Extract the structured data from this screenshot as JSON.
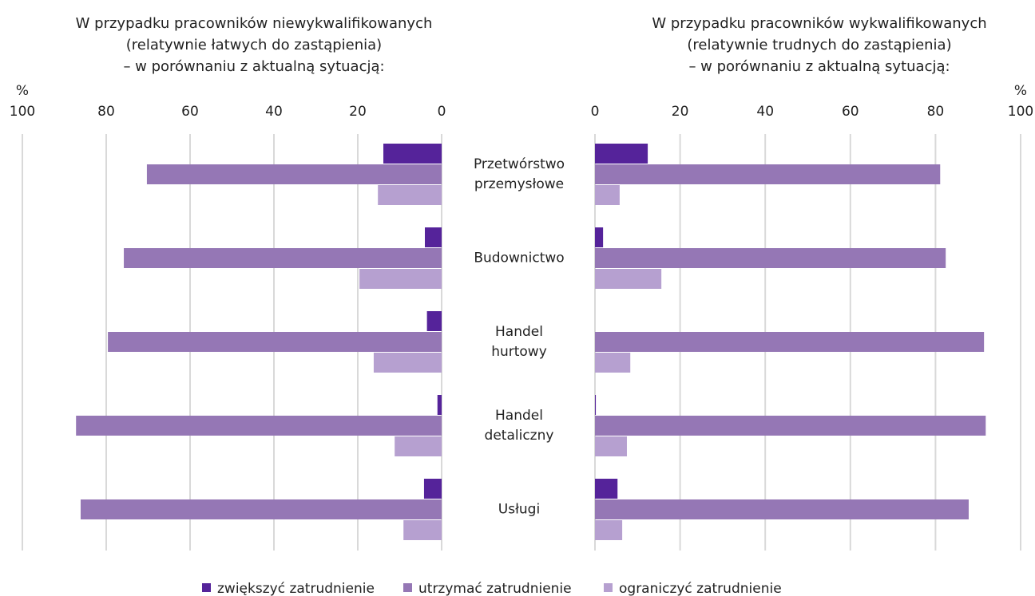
{
  "chart_data": {
    "type": "bar",
    "orientation": "horizontal",
    "categories": [
      [
        "Przetwórstwo",
        "przemysłowe"
      ],
      [
        "Budownictwo"
      ],
      [
        "Handel",
        "hurtowy"
      ],
      [
        "Handel",
        "detaliczny"
      ],
      [
        "Usługi"
      ]
    ],
    "series": [
      {
        "name": "zwiększyć zatrudnienie",
        "color": "#55239a"
      },
      {
        "name": "utrzymać zatrudnienie",
        "color": "#9577b5"
      },
      {
        "name": "ograniczyć zatrudnienie",
        "color": "#b6a0d0"
      }
    ],
    "grid": true,
    "panels": [
      {
        "title": [
          "W przypadku pracowników niewykwalifikowanych",
          "(relatywnie łatwych do zastąpienia)",
          "– w porównaniu z aktualną sytuacją:"
        ],
        "unit": "%",
        "xlim": [
          100,
          0
        ],
        "xticks": [
          100,
          80,
          60,
          40,
          20,
          0
        ],
        "series": [
          {
            "values": [
              13.9,
              4,
              3.5,
              1,
              4.2
            ]
          },
          {
            "values": [
              70.3,
              75.8,
              79.6,
              87.2,
              86.1
            ]
          },
          {
            "values": [
              15.2,
              19.6,
              16.2,
              11.2,
              9.1
            ]
          }
        ]
      },
      {
        "title": [
          "W przypadku pracowników wykwalifikowanych",
          "(relatywnie trudnych do zastąpienia)",
          "– w porównaniu z aktualną sytuacją:"
        ],
        "unit": "%",
        "xlim": [
          0,
          100
        ],
        "xticks": [
          0,
          20,
          40,
          60,
          80,
          100
        ],
        "series": [
          {
            "values": [
              12.4,
              1.9,
              0,
              0.2,
              5.3
            ]
          },
          {
            "values": [
              81.1,
              82.4,
              91.4,
              91.8,
              87.8
            ]
          },
          {
            "values": [
              5.8,
              15.6,
              8.3,
              7.5,
              6.4
            ]
          }
        ]
      }
    ]
  }
}
